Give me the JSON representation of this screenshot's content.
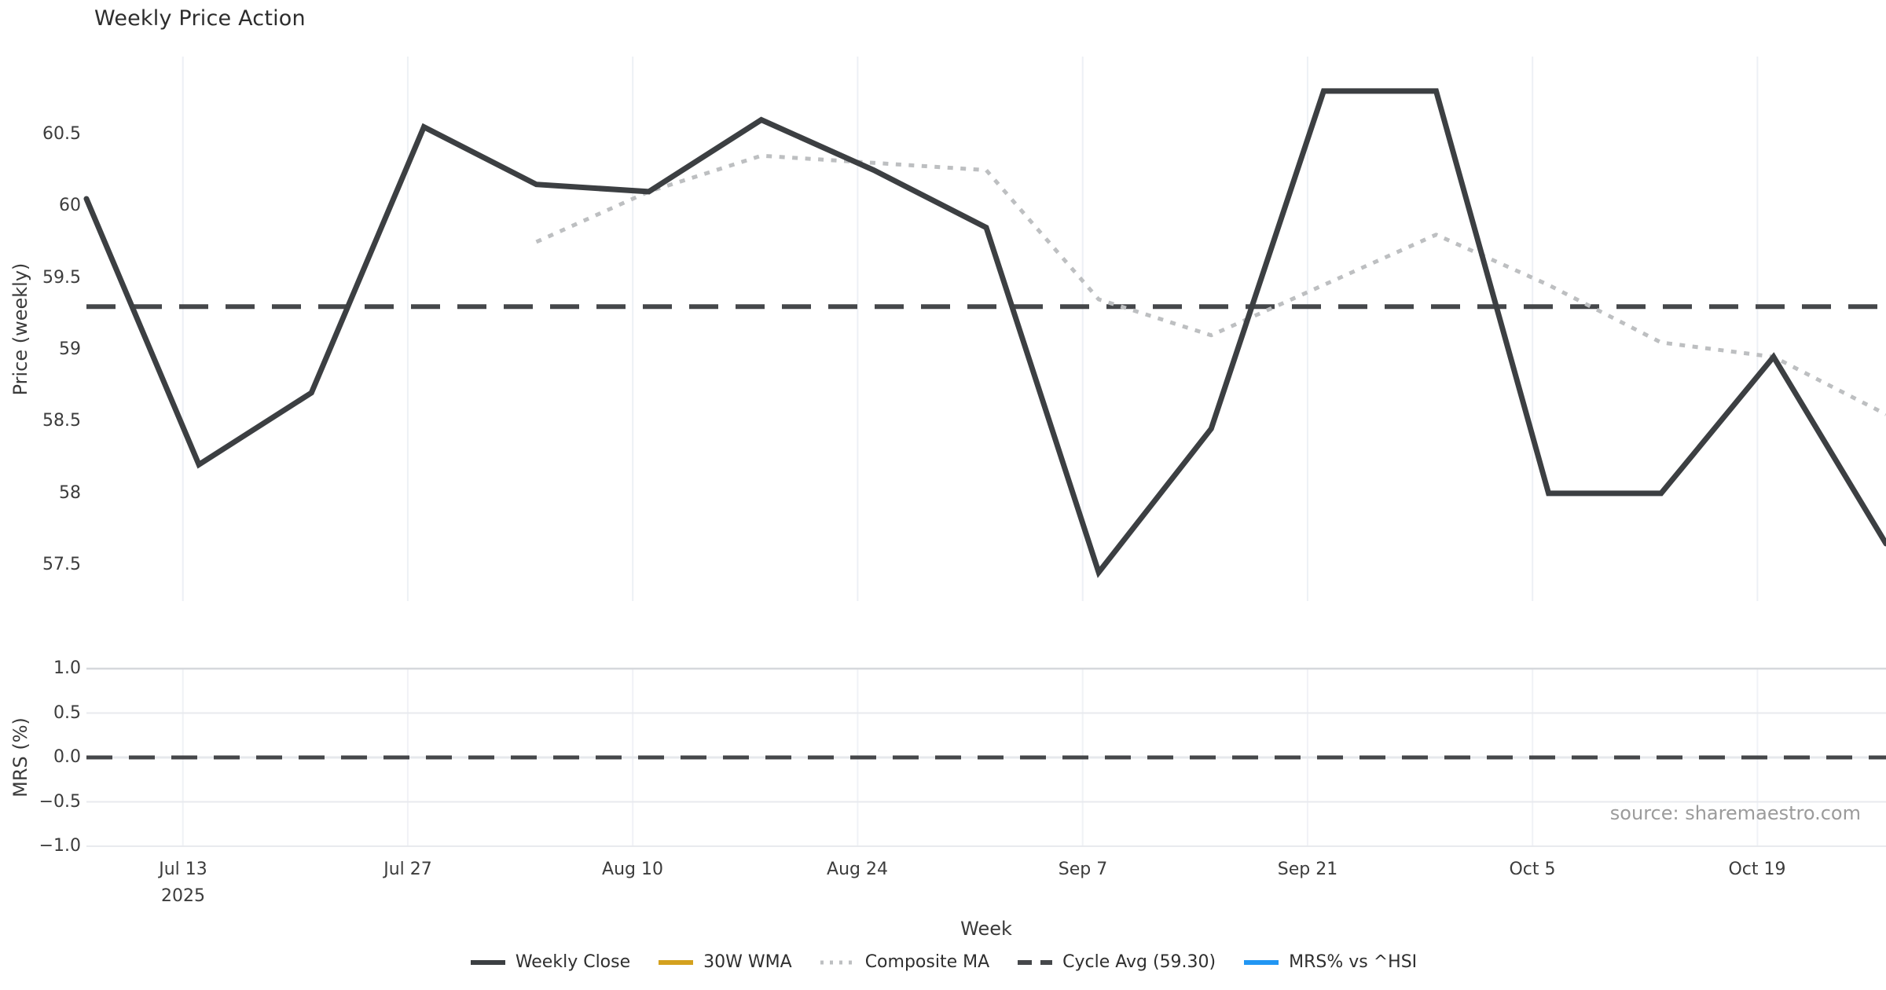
{
  "title": "Weekly Price Action",
  "xlabel": "Week",
  "source_note": "source: sharemaestro.com",
  "colors": {
    "weekly_close": "#3c3f42",
    "wma_30w": "#d4a11e",
    "composite_ma": "#bdbfc1",
    "cycle_avg": "#45474a",
    "mrs_line": "#2196f3",
    "grid_vertical": "#edf0f5",
    "grid_horizontal": "#e8eaee",
    "grid_horizontal_top": "#d6d8dc",
    "zero_underlay": "#e6e8ec",
    "tick_text": "#3c3c3c",
    "muted_text": "#9b9b9b"
  },
  "chart_data": {
    "type": "line",
    "title": "Weekly Price Action",
    "xlabel": "Week",
    "x_weeks": [
      "Jul 7",
      "Jul 14",
      "Jul 21",
      "Jul 28",
      "Aug 4",
      "Aug 11",
      "Aug 18",
      "Aug 25",
      "Sep 1",
      "Sep 8",
      "Sep 15",
      "Sep 22",
      "Sep 29",
      "Oct 6",
      "Oct 13",
      "Oct 20",
      "Oct 27"
    ],
    "x_days": [
      0,
      7,
      14,
      21,
      28,
      35,
      42,
      49,
      56,
      63,
      70,
      77,
      84,
      91,
      98,
      105,
      112
    ],
    "x_day_span": 112,
    "x_ticks": [
      {
        "day": 6,
        "label": "Jul 13",
        "sublabel": "2025"
      },
      {
        "day": 20,
        "label": "Jul 27",
        "sublabel": ""
      },
      {
        "day": 34,
        "label": "Aug 10",
        "sublabel": ""
      },
      {
        "day": 48,
        "label": "Aug 24",
        "sublabel": ""
      },
      {
        "day": 62,
        "label": "Sep 7",
        "sublabel": ""
      },
      {
        "day": 76,
        "label": "Sep 21",
        "sublabel": ""
      },
      {
        "day": 90,
        "label": "Oct 5",
        "sublabel": ""
      },
      {
        "day": 104,
        "label": "Oct 19",
        "sublabel": ""
      }
    ],
    "panels": [
      {
        "ylabel": "Price (weekly)",
        "ylim": [
          57.25,
          61.04
        ],
        "ytick_values": [
          57.5,
          58,
          58.5,
          59,
          59.5,
          60,
          60.5
        ],
        "ytick_labels": [
          "57.5",
          "58",
          "58.5",
          "59",
          "59.5",
          "60",
          "60.5"
        ],
        "gridlines": "vertical"
      },
      {
        "ylabel": "MRS (%)",
        "ylim": [
          -1.0,
          1.0
        ],
        "ytick_values": [
          -1.0,
          -0.5,
          0.0,
          0.5,
          1.0
        ],
        "ytick_labels": [
          "−1.0",
          "−0.5",
          "0.0",
          "0.5",
          "1.0"
        ],
        "gridlines": "horizontal+vertical"
      }
    ],
    "series": [
      {
        "name": "Weekly Close",
        "panel": 0,
        "style": "solid",
        "color_key": "weekly_close",
        "visible": true,
        "values": [
          60.05,
          58.2,
          58.7,
          60.55,
          60.15,
          60.1,
          60.6,
          60.25,
          59.85,
          57.45,
          58.45,
          60.8,
          60.8,
          58.0,
          58.0,
          58.95,
          57.65
        ]
      },
      {
        "name": "30W WMA",
        "panel": 0,
        "style": "solid",
        "color_key": "wma_30w",
        "visible": false,
        "values": []
      },
      {
        "name": "Composite MA",
        "panel": 0,
        "style": "dotted",
        "color_key": "composite_ma",
        "visible": true,
        "values": [
          null,
          null,
          null,
          null,
          59.75,
          60.1,
          60.35,
          60.3,
          60.25,
          59.35,
          59.1,
          59.45,
          59.8,
          59.45,
          59.05,
          58.95,
          58.55
        ]
      },
      {
        "name": "Cycle Avg (59.30)",
        "panel": 0,
        "style": "dashed",
        "color_key": "cycle_avg",
        "visible": true,
        "constant": 59.3
      },
      {
        "name": "MRS% vs ^HSI",
        "panel": 1,
        "style": "solid",
        "color_key": "mrs_line",
        "visible": false,
        "values": []
      }
    ],
    "zero_line": {
      "panel": 1,
      "value": 0.0,
      "style": "dashed",
      "color_key": "cycle_avg"
    },
    "legend_entries": [
      "Weekly Close",
      "30W WMA",
      "Composite MA",
      "Cycle Avg (59.30)",
      "MRS% vs ^HSI"
    ]
  }
}
